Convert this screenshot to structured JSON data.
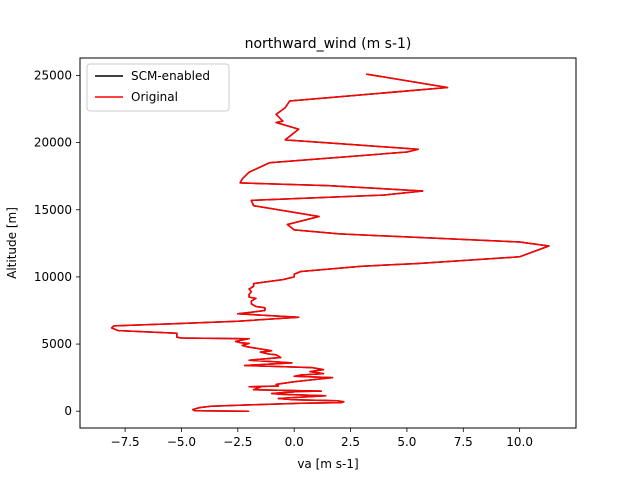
{
  "chart_data": {
    "type": "line",
    "title": "northward_wind (m s-1)",
    "xlabel": "va [m s-1]",
    "ylabel": "Altitude [m]",
    "xlim": [
      -9.5,
      12.5
    ],
    "ylim": [
      -1250,
      26300
    ],
    "xticks": [
      -7.5,
      -5.0,
      -2.5,
      0.0,
      2.5,
      5.0,
      7.5,
      10.0
    ],
    "xtick_labels": [
      "−7.5",
      "−5.0",
      "−2.5",
      "0.0",
      "2.5",
      "5.0",
      "7.5",
      "10.0"
    ],
    "yticks": [
      0,
      5000,
      10000,
      15000,
      20000,
      25000
    ],
    "ytick_labels": [
      "0",
      "5000",
      "10000",
      "15000",
      "20000",
      "25000"
    ],
    "grid": false,
    "legend_placement": "upper-left",
    "series": [
      {
        "name": "SCM-enabled",
        "color": "#000000",
        "points": [
          [
            -2.0,
            0
          ],
          [
            -4.4,
            30
          ],
          [
            -4.5,
            120
          ],
          [
            -4.2,
            270
          ],
          [
            -3.7,
            370
          ],
          [
            -2.0,
            470
          ],
          [
            0.3,
            600
          ],
          [
            2.1,
            640
          ],
          [
            2.2,
            700
          ],
          [
            1.9,
            780
          ],
          [
            0.0,
            850
          ],
          [
            -0.7,
            950
          ],
          [
            0.9,
            1100
          ],
          [
            1.4,
            1150
          ],
          [
            -0.5,
            1250
          ],
          [
            -1.0,
            1320
          ],
          [
            0.2,
            1470
          ],
          [
            1.2,
            1500
          ],
          [
            -1.8,
            1600
          ],
          [
            -1.5,
            1800
          ],
          [
            -2.0,
            1820
          ],
          [
            -0.7,
            1880
          ],
          [
            -0.8,
            2000
          ],
          [
            0.0,
            2200
          ],
          [
            1.7,
            2500
          ],
          [
            0.0,
            2600
          ],
          [
            0.3,
            2700
          ],
          [
            1.3,
            2800
          ],
          [
            0.7,
            2950
          ],
          [
            1.3,
            3100
          ],
          [
            0.8,
            3250
          ],
          [
            -2.2,
            3400
          ],
          [
            -0.1,
            3600
          ],
          [
            -2.0,
            3800
          ],
          [
            -0.6,
            4000
          ],
          [
            -0.8,
            4200
          ],
          [
            -1.1,
            4250
          ],
          [
            -1.5,
            4400
          ],
          [
            -1.0,
            4500
          ],
          [
            -2.1,
            4800
          ],
          [
            -2.2,
            4850
          ],
          [
            -2.3,
            4900
          ],
          [
            -2.0,
            5050
          ],
          [
            -2.4,
            5100
          ],
          [
            -2.6,
            5200
          ],
          [
            -2.0,
            5400
          ],
          [
            -5.0,
            5450
          ],
          [
            -5.2,
            5500
          ],
          [
            -5.2,
            5800
          ],
          [
            -7.8,
            6000
          ],
          [
            -8.1,
            6200
          ],
          [
            -8.0,
            6350
          ],
          [
            -5.5,
            6500
          ],
          [
            -2.5,
            6700
          ],
          [
            0.2,
            7000
          ],
          [
            -2.5,
            7250
          ],
          [
            -2.0,
            7350
          ],
          [
            -1.3,
            7500
          ],
          [
            -1.3,
            7700
          ],
          [
            -1.7,
            7800
          ],
          [
            -1.9,
            8000
          ],
          [
            -1.9,
            8200
          ],
          [
            -1.7,
            8400
          ],
          [
            -2.0,
            8500
          ],
          [
            -2.0,
            8700
          ],
          [
            -1.9,
            8900
          ],
          [
            -2.0,
            9100
          ],
          [
            -1.8,
            9300
          ],
          [
            -1.8,
            9500
          ],
          [
            -0.5,
            9800
          ],
          [
            0.0,
            10000
          ],
          [
            0.0,
            10200
          ],
          [
            0.3,
            10400
          ],
          [
            3.0,
            10800
          ],
          [
            5.5,
            11000
          ],
          [
            10.0,
            11500
          ],
          [
            11.3,
            12300
          ],
          [
            10.0,
            12600
          ],
          [
            2.0,
            13200
          ],
          [
            0.0,
            13500
          ],
          [
            -0.3,
            13900
          ],
          [
            1.1,
            14500
          ],
          [
            -1.8,
            15300
          ],
          [
            -1.9,
            15700
          ],
          [
            4.0,
            16100
          ],
          [
            5.7,
            16400
          ],
          [
            1.5,
            16800
          ],
          [
            -2.4,
            17000
          ],
          [
            -2.3,
            17300
          ],
          [
            -2.0,
            17800
          ],
          [
            -1.1,
            18500
          ],
          [
            5.0,
            19300
          ],
          [
            5.5,
            19500
          ],
          [
            3.0,
            19800
          ],
          [
            -0.4,
            20200
          ],
          [
            0.2,
            21000
          ],
          [
            -0.8,
            21500
          ],
          [
            -0.5,
            21600
          ],
          [
            -0.8,
            22100
          ],
          [
            -0.4,
            22600
          ],
          [
            -0.2,
            23100
          ],
          [
            6.8,
            24100
          ],
          [
            3.2,
            25100
          ]
        ]
      },
      {
        "name": "Original",
        "color": "#ff0000",
        "points": [
          [
            -2.0,
            0
          ],
          [
            -4.4,
            30
          ],
          [
            -4.5,
            120
          ],
          [
            -4.2,
            270
          ],
          [
            -3.7,
            370
          ],
          [
            -2.0,
            470
          ],
          [
            0.3,
            600
          ],
          [
            2.1,
            640
          ],
          [
            2.2,
            700
          ],
          [
            1.9,
            780
          ],
          [
            0.0,
            850
          ],
          [
            -0.7,
            950
          ],
          [
            0.9,
            1100
          ],
          [
            1.4,
            1150
          ],
          [
            -0.5,
            1250
          ],
          [
            -1.0,
            1320
          ],
          [
            0.2,
            1470
          ],
          [
            1.2,
            1500
          ],
          [
            -1.8,
            1600
          ],
          [
            -1.5,
            1800
          ],
          [
            -2.0,
            1820
          ],
          [
            -0.7,
            1880
          ],
          [
            -0.8,
            2000
          ],
          [
            0.0,
            2200
          ],
          [
            1.7,
            2500
          ],
          [
            0.0,
            2600
          ],
          [
            0.3,
            2700
          ],
          [
            1.3,
            2800
          ],
          [
            0.7,
            2950
          ],
          [
            1.3,
            3100
          ],
          [
            0.8,
            3250
          ],
          [
            -2.2,
            3400
          ],
          [
            -0.1,
            3600
          ],
          [
            -2.0,
            3800
          ],
          [
            -0.6,
            4000
          ],
          [
            -0.8,
            4200
          ],
          [
            -1.1,
            4250
          ],
          [
            -1.5,
            4400
          ],
          [
            -1.0,
            4500
          ],
          [
            -2.1,
            4800
          ],
          [
            -2.2,
            4850
          ],
          [
            -2.3,
            4900
          ],
          [
            -2.0,
            5050
          ],
          [
            -2.4,
            5100
          ],
          [
            -2.6,
            5200
          ],
          [
            -2.0,
            5400
          ],
          [
            -5.0,
            5450
          ],
          [
            -5.2,
            5500
          ],
          [
            -5.2,
            5800
          ],
          [
            -7.8,
            6000
          ],
          [
            -8.1,
            6200
          ],
          [
            -8.0,
            6350
          ],
          [
            -5.5,
            6500
          ],
          [
            -2.5,
            6700
          ],
          [
            0.2,
            7000
          ],
          [
            -2.5,
            7250
          ],
          [
            -2.0,
            7350
          ],
          [
            -1.3,
            7500
          ],
          [
            -1.3,
            7700
          ],
          [
            -1.7,
            7800
          ],
          [
            -1.9,
            8000
          ],
          [
            -1.9,
            8200
          ],
          [
            -1.7,
            8400
          ],
          [
            -2.0,
            8500
          ],
          [
            -2.0,
            8700
          ],
          [
            -1.9,
            8900
          ],
          [
            -2.0,
            9100
          ],
          [
            -1.8,
            9300
          ],
          [
            -1.8,
            9500
          ],
          [
            -0.5,
            9800
          ],
          [
            0.0,
            10000
          ],
          [
            0.0,
            10200
          ],
          [
            0.3,
            10400
          ],
          [
            3.0,
            10800
          ],
          [
            5.5,
            11000
          ],
          [
            10.0,
            11500
          ],
          [
            11.3,
            12300
          ],
          [
            10.0,
            12600
          ],
          [
            2.0,
            13200
          ],
          [
            0.0,
            13500
          ],
          [
            -0.3,
            13900
          ],
          [
            1.1,
            14500
          ],
          [
            -1.8,
            15300
          ],
          [
            -1.9,
            15700
          ],
          [
            4.0,
            16100
          ],
          [
            5.7,
            16400
          ],
          [
            1.5,
            16800
          ],
          [
            -2.4,
            17000
          ],
          [
            -2.3,
            17300
          ],
          [
            -2.0,
            17800
          ],
          [
            -1.1,
            18500
          ],
          [
            5.0,
            19300
          ],
          [
            5.5,
            19500
          ],
          [
            3.0,
            19800
          ],
          [
            -0.4,
            20200
          ],
          [
            0.2,
            21000
          ],
          [
            -0.8,
            21500
          ],
          [
            -0.5,
            21600
          ],
          [
            -0.8,
            22100
          ],
          [
            -0.4,
            22600
          ],
          [
            -0.2,
            23100
          ],
          [
            6.8,
            24100
          ],
          [
            3.2,
            25100
          ]
        ]
      }
    ]
  }
}
